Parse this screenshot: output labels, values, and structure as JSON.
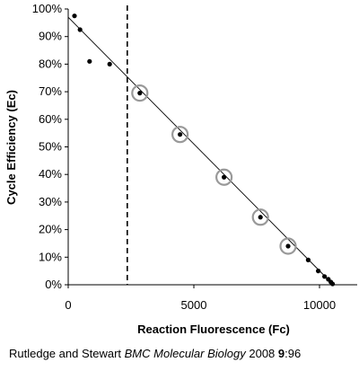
{
  "chart_data": {
    "type": "scatter",
    "xlabel": "Reaction Fluorescence (Fc)",
    "ylabel": "Cycle Efficiency (Ec)",
    "xlim": [
      0,
      11500
    ],
    "ylim": [
      0,
      100
    ],
    "x_ticks": [
      0,
      5000,
      10000
    ],
    "x_tick_labels": [
      "0",
      "5000",
      "10000"
    ],
    "y_ticks": [
      0,
      10,
      20,
      30,
      40,
      50,
      60,
      70,
      80,
      90,
      100
    ],
    "y_tick_labels": [
      "0%",
      "10%",
      "20%",
      "30%",
      "40%",
      "50%",
      "60%",
      "70%",
      "80%",
      "90%",
      "100%"
    ],
    "grid": false,
    "points": [
      {
        "x": 250,
        "y": 97.5,
        "circled": false
      },
      {
        "x": 470,
        "y": 92.5,
        "circled": false
      },
      {
        "x": 850,
        "y": 81,
        "circled": false
      },
      {
        "x": 1650,
        "y": 80,
        "circled": false
      },
      {
        "x": 2850,
        "y": 69.5,
        "circled": true
      },
      {
        "x": 4450,
        "y": 54.5,
        "circled": true
      },
      {
        "x": 6200,
        "y": 39,
        "circled": true
      },
      {
        "x": 7650,
        "y": 24.5,
        "circled": true
      },
      {
        "x": 8750,
        "y": 14,
        "circled": true
      },
      {
        "x": 9550,
        "y": 9,
        "circled": false
      },
      {
        "x": 9950,
        "y": 5,
        "circled": false
      },
      {
        "x": 10200,
        "y": 3,
        "circled": false
      },
      {
        "x": 10350,
        "y": 2,
        "circled": false
      },
      {
        "x": 10450,
        "y": 1,
        "circled": false
      },
      {
        "x": 10520,
        "y": 0.3,
        "circled": false
      }
    ],
    "regression_line": {
      "x1": 0,
      "y1": 97,
      "x2": 10550,
      "y2": 0
    },
    "threshold_line": {
      "x": 2350,
      "style": "dashed"
    },
    "colors": {
      "points": "#000000",
      "circles": "#999999",
      "line": "#000000"
    }
  },
  "citation": {
    "authors": "Rutledge and Stewart ",
    "journal": "BMC Molecular Biology",
    "year": " 2008 ",
    "volume": "9",
    "pages": ":96"
  }
}
